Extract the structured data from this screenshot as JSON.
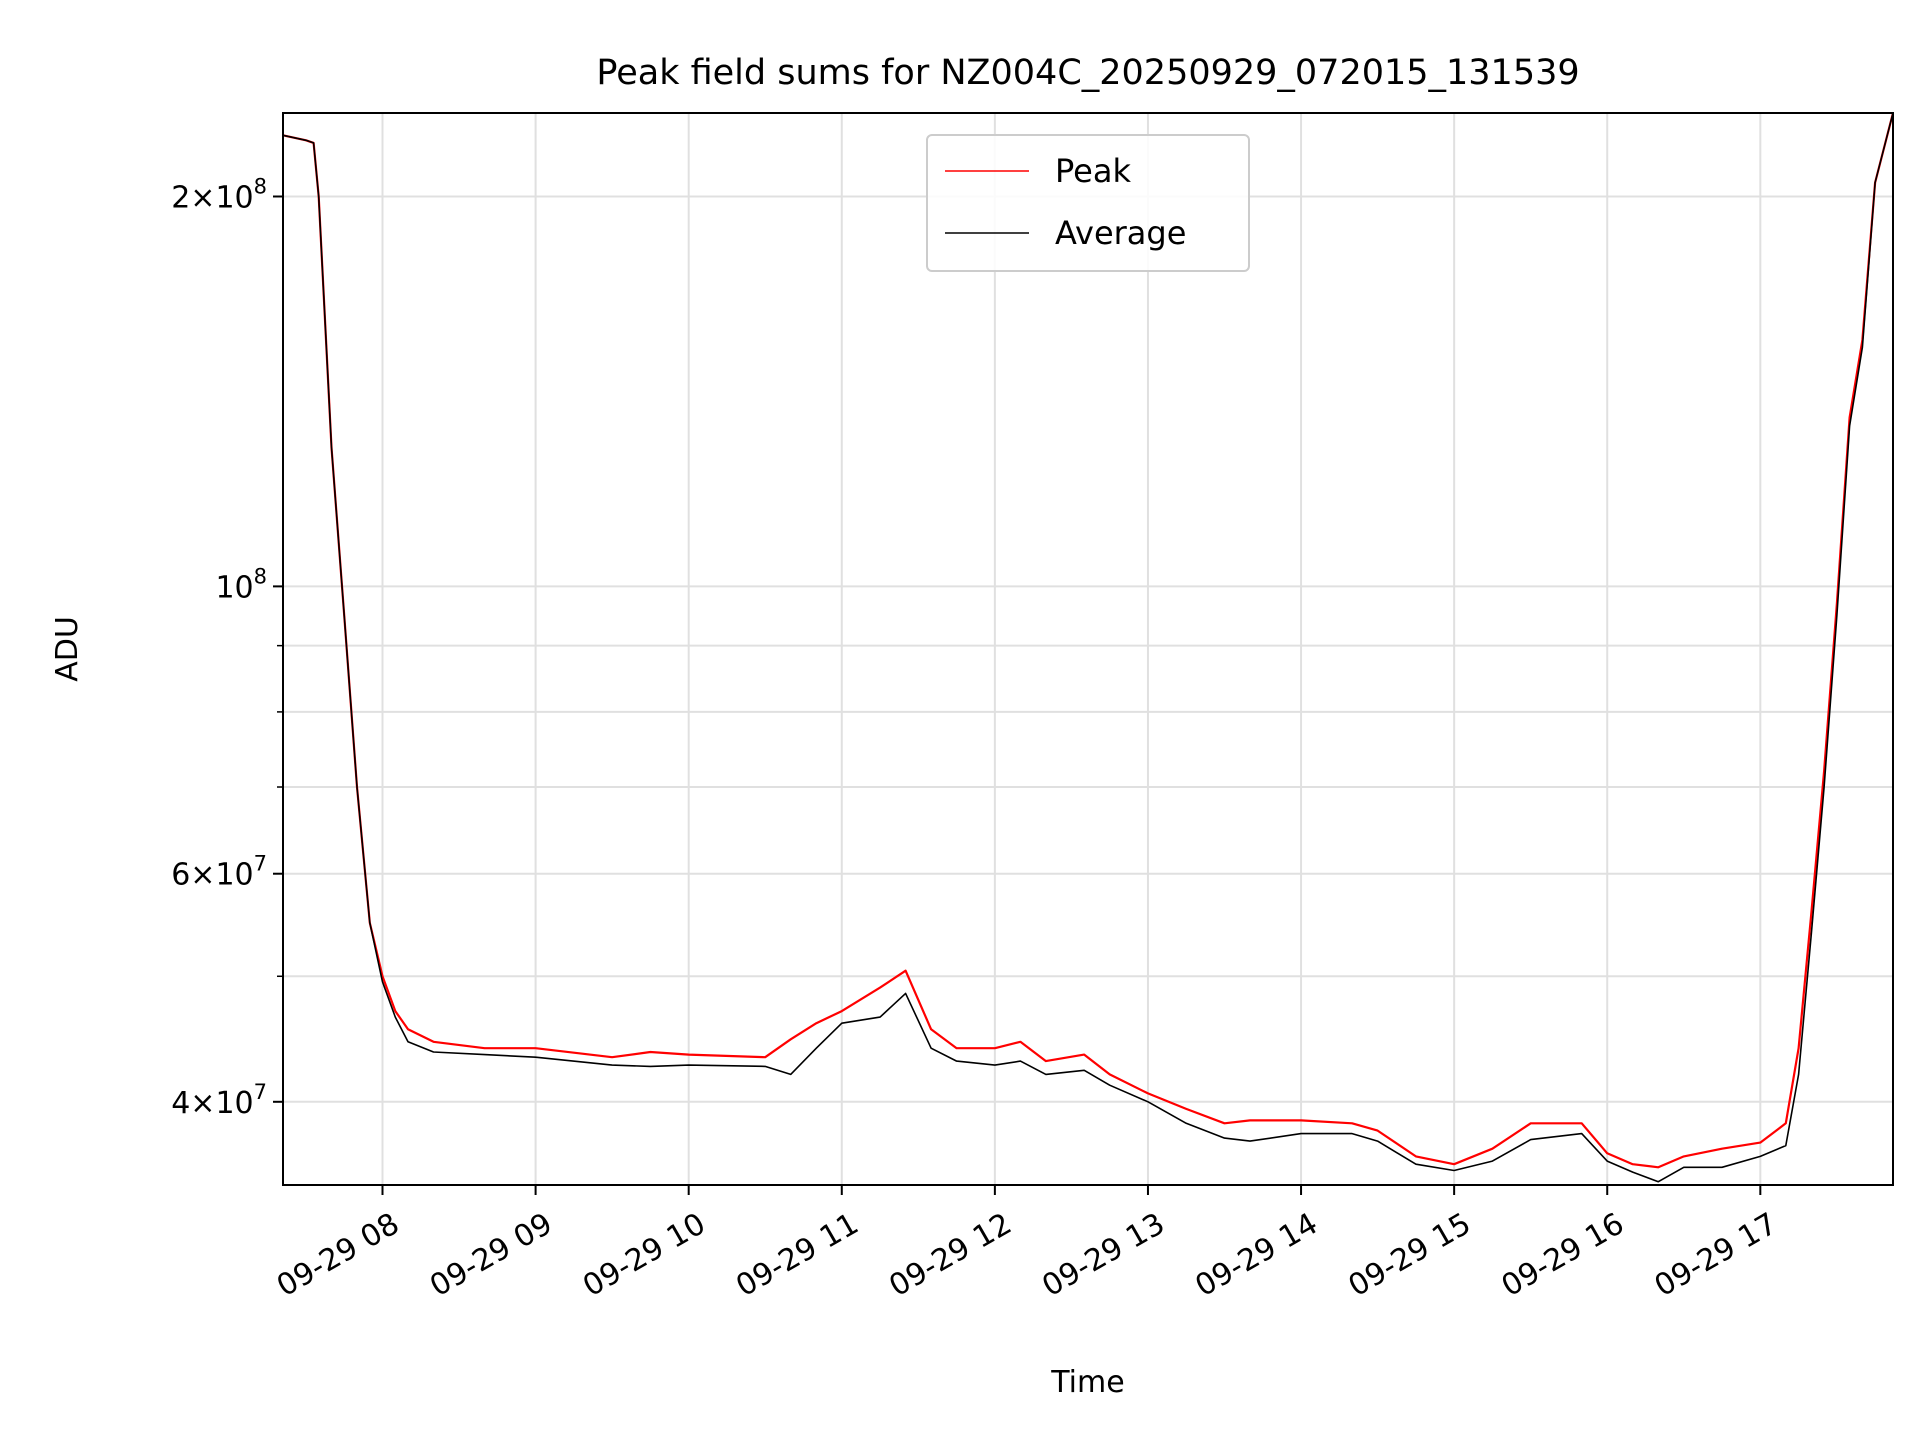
{
  "chart_data": {
    "type": "line",
    "title": "Peak field sums for NZ004C_20250929_072015_131539",
    "xlabel": "Time",
    "ylabel": "ADU",
    "xlim": [
      "2025-09-29 07:21",
      "2025-09-29 17:52"
    ],
    "ylim": [
      34500000,
      232000000
    ],
    "yscale": "log",
    "grid": true,
    "legend": {
      "placement": "top-center",
      "entries": [
        "Peak",
        "Average"
      ]
    },
    "colors": {
      "Peak": "#ff0000",
      "Average": "#000000",
      "grid": "#e0e0e0"
    },
    "x_ticks": [
      "09-29 08",
      "09-29 09",
      "09-29 10",
      "09-29 11",
      "09-29 12",
      "09-29 13",
      "09-29 14",
      "09-29 15",
      "09-29 16",
      "09-29 17"
    ],
    "y_ticks": [
      {
        "value": 40000000,
        "mantissa": "4",
        "exponent": "7"
      },
      {
        "value": 60000000,
        "mantissa": "6",
        "exponent": "7"
      },
      {
        "value": 100000000,
        "mantissa": "",
        "exponent": "8"
      },
      {
        "value": 200000000,
        "mantissa": "2",
        "exponent": "8"
      }
    ],
    "y_minor_ticks": [
      50000000,
      70000000,
      80000000,
      90000000
    ],
    "x": [
      "2025-09-29 07:21",
      "2025-09-29 07:30",
      "2025-09-29 07:33",
      "2025-09-29 07:35",
      "2025-09-29 07:40",
      "2025-09-29 07:45",
      "2025-09-29 07:50",
      "2025-09-29 07:55",
      "2025-09-29 08:00",
      "2025-09-29 08:05",
      "2025-09-29 08:10",
      "2025-09-29 08:20",
      "2025-09-29 08:40",
      "2025-09-29 09:00",
      "2025-09-29 09:30",
      "2025-09-29 09:45",
      "2025-09-29 10:00",
      "2025-09-29 10:30",
      "2025-09-29 10:40",
      "2025-09-29 10:50",
      "2025-09-29 11:00",
      "2025-09-29 11:15",
      "2025-09-29 11:25",
      "2025-09-29 11:35",
      "2025-09-29 11:45",
      "2025-09-29 12:00",
      "2025-09-29 12:10",
      "2025-09-29 12:20",
      "2025-09-29 12:35",
      "2025-09-29 12:45",
      "2025-09-29 13:00",
      "2025-09-29 13:15",
      "2025-09-29 13:30",
      "2025-09-29 13:40",
      "2025-09-29 14:00",
      "2025-09-29 14:20",
      "2025-09-29 14:30",
      "2025-09-29 14:45",
      "2025-09-29 15:00",
      "2025-09-29 15:15",
      "2025-09-29 15:30",
      "2025-09-29 15:50",
      "2025-09-29 16:00",
      "2025-09-29 16:10",
      "2025-09-29 16:20",
      "2025-09-29 16:30",
      "2025-09-29 16:45",
      "2025-09-29 17:00",
      "2025-09-29 17:10",
      "2025-09-29 17:15",
      "2025-09-29 17:20",
      "2025-09-29 17:25",
      "2025-09-29 17:30",
      "2025-09-29 17:35",
      "2025-09-29 17:40",
      "2025-09-29 17:45",
      "2025-09-29 17:52"
    ],
    "series": [
      {
        "name": "Peak",
        "values": [
          223000000,
          221000000,
          220000000,
          200000000,
          128000000,
          95000000,
          70000000,
          55000000,
          50000000,
          47000000,
          45500000,
          44500000,
          44000000,
          44000000,
          43300000,
          43700000,
          43500000,
          43300000,
          44700000,
          46000000,
          47000000,
          49000000,
          50500000,
          45500000,
          44000000,
          44000000,
          44500000,
          43000000,
          43500000,
          42000000,
          40600000,
          39500000,
          38500000,
          38700000,
          38700000,
          38500000,
          38000000,
          36300000,
          35800000,
          36800000,
          38500000,
          38500000,
          36500000,
          35800000,
          35600000,
          36300000,
          36800000,
          37200000,
          38500000,
          44000000,
          56000000,
          72000000,
          97000000,
          135000000,
          155000000,
          205000000,
          232000000
        ]
      },
      {
        "name": "Average",
        "values": [
          223000000,
          221000000,
          220000000,
          200000000,
          128000000,
          95000000,
          70000000,
          55000000,
          49500000,
          46500000,
          44500000,
          43700000,
          43500000,
          43300000,
          42700000,
          42600000,
          42700000,
          42600000,
          42000000,
          44000000,
          46000000,
          46500000,
          48500000,
          44000000,
          43000000,
          42700000,
          43000000,
          42000000,
          42300000,
          41200000,
          40000000,
          38500000,
          37500000,
          37300000,
          37800000,
          37800000,
          37300000,
          35800000,
          35400000,
          36000000,
          37400000,
          37800000,
          36000000,
          35300000,
          34700000,
          35600000,
          35600000,
          36300000,
          37000000,
          42000000,
          54000000,
          70000000,
          95000000,
          133000000,
          153000000,
          205000000,
          232000000
        ]
      }
    ]
  }
}
